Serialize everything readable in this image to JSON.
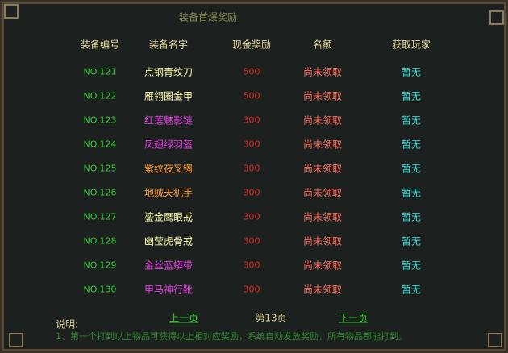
{
  "window": {
    "title": "装备首爆奖励"
  },
  "table": {
    "headers": [
      "装备编号",
      "装备名字",
      "现金奖励",
      "名额",
      "获取玩家"
    ],
    "rows": [
      {
        "id": "NO.121",
        "name": "点钢青纹刀",
        "reward": 500,
        "status": "尚未领取",
        "player": "暂无",
        "name_color": "#ffffb0"
      },
      {
        "id": "NO.122",
        "name": "雁翎圈金甲",
        "reward": 500,
        "status": "尚未领取",
        "player": "暂无",
        "name_color": "#ffffb0"
      },
      {
        "id": "NO.123",
        "name": "红莲魅影链",
        "reward": 300,
        "status": "尚未领取",
        "player": "暂无",
        "name_color": "#e040e0"
      },
      {
        "id": "NO.124",
        "name": "凤翅绿羽盔",
        "reward": 300,
        "status": "尚未领取",
        "player": "暂无",
        "name_color": "#e040e0"
      },
      {
        "id": "NO.125",
        "name": "紫纹夜叉镯",
        "reward": 300,
        "status": "尚未领取",
        "player": "暂无",
        "name_color": "#ff9933"
      },
      {
        "id": "NO.126",
        "name": "地贼天机手",
        "reward": 300,
        "status": "尚未领取",
        "player": "暂无",
        "name_color": "#ff9933"
      },
      {
        "id": "NO.127",
        "name": "鎏金鹰眼戒",
        "reward": 300,
        "status": "尚未领取",
        "player": "暂无",
        "name_color": "#ffffb0"
      },
      {
        "id": "NO.128",
        "name": "幽莹虎骨戒",
        "reward": 300,
        "status": "尚未领取",
        "player": "暂无",
        "name_color": "#ffffb0"
      },
      {
        "id": "NO.129",
        "name": "金丝蓝蟒带",
        "reward": 300,
        "status": "尚未领取",
        "player": "暂无",
        "name_color": "#e040e0"
      },
      {
        "id": "NO.130",
        "name": "甲马神行靴",
        "reward": 300,
        "status": "尚未领取",
        "player": "暂无",
        "name_color": "#e040e0"
      }
    ]
  },
  "pager": {
    "prev": "上一页",
    "page": "第13页",
    "next": "下一页"
  },
  "note": {
    "label": "说明:",
    "text": "1、第一个打到以上物品可获得以上相对应奖励，系统自动发放奖励，所有物品都能打到。"
  }
}
